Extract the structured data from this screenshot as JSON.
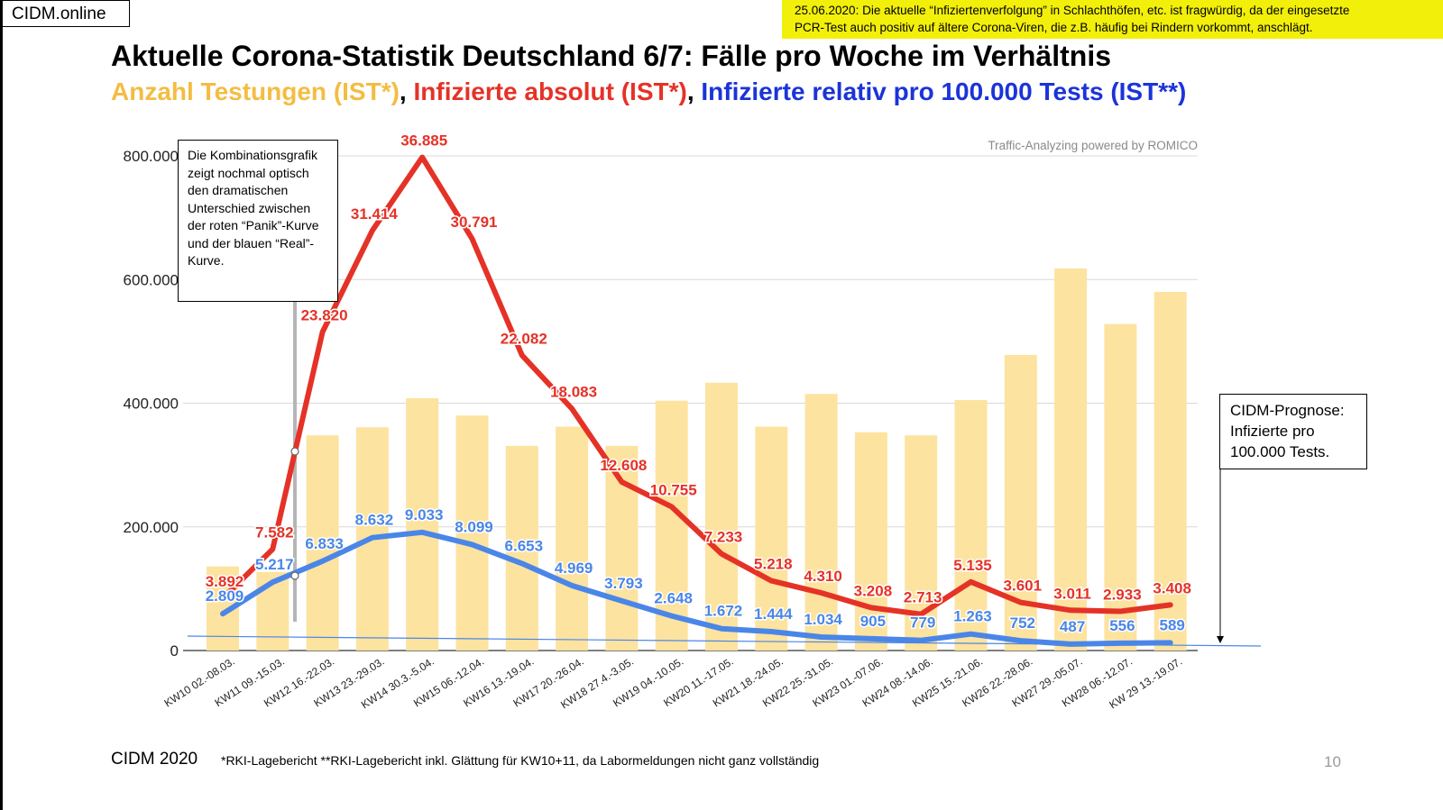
{
  "header": {
    "brand": "CIDM.online",
    "note_line1": "25.06.2020: Die aktuelle “Infiziertenverfolgung” in Schlachthöfen, etc. ist fragwürdig, da der eingesetzte",
    "note_line2": "PCR-Test auch positiv auf ältere Corona-Viren, die z.B. häufig bei Rindern vorkommt, anschlägt.",
    "title": "Aktuelle Corona-Statistik Deutschland 6/7: Fälle pro Woche im Verhältnis",
    "subtitle_tests": "Anzahl Testungen (IST*)",
    "subtitle_sep1": ", ",
    "subtitle_abs": "Infizierte absolut (IST*)",
    "subtitle_sep2": ", ",
    "subtitle_rel": "Infizierte relativ pro 100.000 Tests (IST**)"
  },
  "watermark": "Traffic-Analyzing powered by ROMICO",
  "callouts": {
    "left": "Die Kombinationsgrafik zeigt nochmal optisch den dramatischen Unterschied zwischen der roten “Panik”-Kurve und der blauen “Real”-Kurve.",
    "right": "CIDM-Prognose: Infizierte pro 100.000 Tests."
  },
  "footer": {
    "left": "CIDM 2020",
    "note": "*RKI-Lagebericht   **RKI-Lagebericht inkl. Glättung für KW10+11, da Labormeldungen nicht ganz vollständig",
    "page": "10"
  },
  "colors": {
    "bars": "#fde3a0",
    "red": "#e53227",
    "blue": "#4a86e8",
    "gridline": "#d9d9d9"
  },
  "chart_data": {
    "type": "bar",
    "ylim": [
      0,
      800000
    ],
    "y_ticks": [
      "0",
      "200.000",
      "400.000",
      "600.000",
      "800.000"
    ],
    "y_tick_values": [
      0,
      200000,
      400000,
      600000,
      800000
    ],
    "categories": [
      "KW10 02.-08.03.",
      "KW11 09.-15.03.",
      "KW12 16.-22.03.",
      "KW13 23.-29.03.",
      "KW14 30.3.-5.04.",
      "KW15 06.-12.04.",
      "KW16 13.-19.04.",
      "KW17 20.-26.04.",
      "KW18 27.4.-3.05.",
      "KW19 04.-10.05.",
      "KW20 11.-17.05.",
      "KW21 18.-24.05.",
      "KW22 25.-31.05.",
      "KW23 01.-07.06.",
      "KW24 08.-14.06.",
      "KW25 15.-21.06.",
      "KW26 22.-28.06.",
      "KW27 29.-05.07.",
      "KW28 06.-12.07.",
      "KW 29 13.-19.07."
    ],
    "series": [
      {
        "name": "Anzahl Testungen (IST*)",
        "kind": "bar",
        "values": [
          136000,
          127000,
          348000,
          361000,
          408000,
          380000,
          331000,
          362000,
          331000,
          404000,
          433000,
          362000,
          415000,
          353000,
          348000,
          405000,
          478000,
          618000,
          528000,
          580000
        ]
      },
      {
        "name": "Infizierte absolut (IST*)",
        "kind": "line",
        "values": [
          3892,
          7582,
          23820,
          31414,
          36885,
          30791,
          22082,
          18083,
          12608,
          10755,
          7233,
          5218,
          4310,
          3208,
          2713,
          5135,
          3601,
          3011,
          2933,
          3408
        ],
        "labels": [
          "3.892",
          "7.582",
          "23.820",
          "31.414",
          "36.885",
          "30.791",
          "22.082",
          "18.083",
          "12.608",
          "10.755",
          "7.233",
          "5.218",
          "4.310",
          "3.208",
          "2.713",
          "5.135",
          "3.601",
          "3.011",
          "2.933",
          "3.408"
        ]
      },
      {
        "name": "Infizierte relativ pro 100.000 Tests (IST**)",
        "kind": "line",
        "values": [
          2809,
          5217,
          6833,
          8632,
          9033,
          8099,
          6653,
          4969,
          3793,
          2648,
          1672,
          1444,
          1034,
          905,
          779,
          1263,
          752,
          487,
          556,
          589
        ],
        "labels": [
          "2.809",
          "5.217",
          "6.833",
          "8.632",
          "9.033",
          "8.099",
          "6.653",
          "4.969",
          "3.793",
          "2.648",
          "1.672",
          "1.444",
          "1.034",
          "905",
          "779",
          "1.263",
          "752",
          "487",
          "556",
          "589"
        ]
      }
    ]
  }
}
